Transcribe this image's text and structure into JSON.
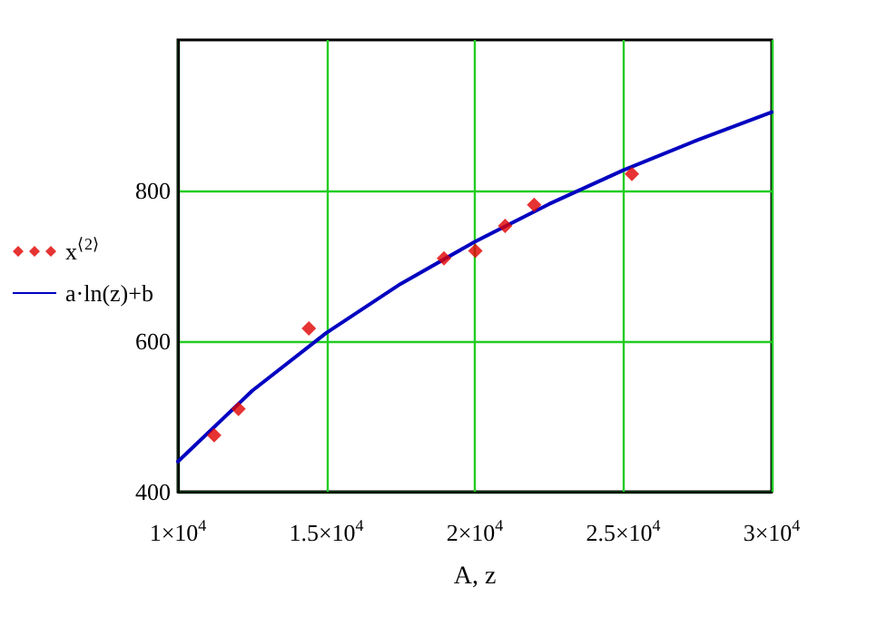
{
  "chart_data": {
    "type": "scatter",
    "xlabel": "A, z",
    "series": [
      {
        "name": "x$^{⟨2⟩}$",
        "color": "#e00000",
        "marker": "diamond",
        "x": [
          11220,
          12040,
          14410,
          18960,
          20020,
          21020,
          22000,
          25290
        ],
        "values": [
          475,
          510,
          617,
          710,
          720,
          753,
          781,
          822
        ]
      },
      {
        "name": "a·ln(z)+b",
        "type": "line",
        "color": "#0000c0",
        "marker": "none",
        "line_style": "solid",
        "x": [
          10000,
          12500,
          15000,
          17500,
          20000,
          22500,
          25000,
          27500,
          30000
        ],
        "values": [
          440,
          534,
          611,
          676,
          732,
          782,
          827,
          867,
          904
        ]
      }
    ],
    "xlim": [
      10000,
      30000
    ],
    "xticks": [
      {
        "value": 10000,
        "label": "1×10$^{4}$"
      },
      {
        "value": 15000,
        "label": "1.5×10$^{4}$"
      },
      {
        "value": 20000,
        "label": "2×10$^{4}$"
      },
      {
        "value": 25000,
        "label": "2.5×10$^{4}$"
      },
      {
        "value": 30000,
        "label": "3×10$^{4}$"
      }
    ],
    "ylim": [
      400,
      1000
    ],
    "yticks": [
      400,
      600,
      800
    ],
    "grid": true,
    "legend": "left"
  }
}
